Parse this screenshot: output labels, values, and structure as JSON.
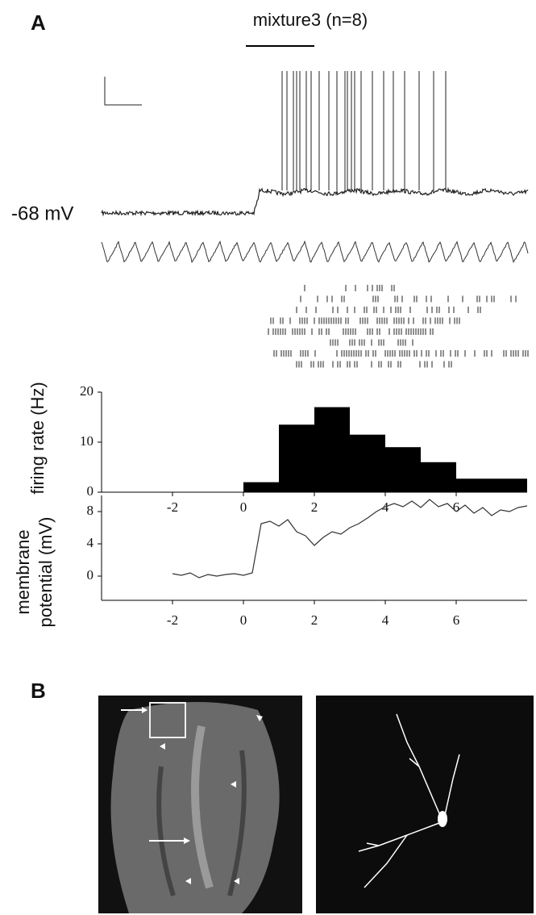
{
  "panel_a": {
    "label": "A",
    "stimulus": "mixture3 (n=8)",
    "resting_potential": "-68 mV"
  },
  "chart_data": [
    {
      "type": "histogram",
      "ylabel": "firing rate (Hz)",
      "bins": [
        -4,
        -3,
        -2,
        -1,
        0,
        1,
        2,
        3,
        4,
        5,
        6,
        7,
        8
      ],
      "values": [
        0,
        0,
        0,
        0,
        2,
        13.5,
        17,
        11.5,
        9,
        6,
        2.7,
        2.7
      ],
      "color": "#000000",
      "xlim": [
        -4,
        8
      ],
      "xticks": [
        -2,
        0,
        2,
        4,
        6
      ],
      "ylim": [
        0,
        20
      ],
      "yticks": [
        0,
        10,
        20
      ]
    },
    {
      "type": "line",
      "ylabel": [
        "membrane",
        "potential (mV)"
      ],
      "x": [
        -2,
        -1.75,
        -1.5,
        -1.25,
        -1,
        -0.75,
        -0.5,
        -0.25,
        0,
        0.25,
        0.5,
        0.75,
        1,
        1.25,
        1.5,
        1.75,
        2,
        2.25,
        2.5,
        2.75,
        3,
        3.25,
        3.5,
        3.75,
        4,
        4.25,
        4.5,
        4.75,
        5,
        5.25,
        5.5,
        5.75,
        6,
        6.25,
        6.5,
        6.75,
        7,
        7.25,
        7.5,
        7.75,
        8
      ],
      "values": [
        0.3,
        0.1,
        0.4,
        -0.2,
        0.2,
        0,
        0.2,
        0.3,
        0.1,
        0.4,
        6.5,
        6.8,
        6.2,
        7,
        5.5,
        5,
        3.8,
        4.8,
        5.5,
        5.2,
        6,
        6.5,
        7.2,
        8,
        8.6,
        9,
        8.6,
        9.3,
        8.5,
        9.5,
        8.6,
        9,
        8,
        8.8,
        7.8,
        8.5,
        7.5,
        8.2,
        8,
        8.5,
        8.7
      ],
      "color": "#333333",
      "xlim": [
        -4,
        8
      ],
      "xticks": [
        -2,
        0,
        2,
        4,
        6
      ],
      "ylim": [
        -3,
        10
      ],
      "yticks": [
        0,
        4,
        8
      ]
    }
  ],
  "panel_b": {
    "label": "B"
  }
}
